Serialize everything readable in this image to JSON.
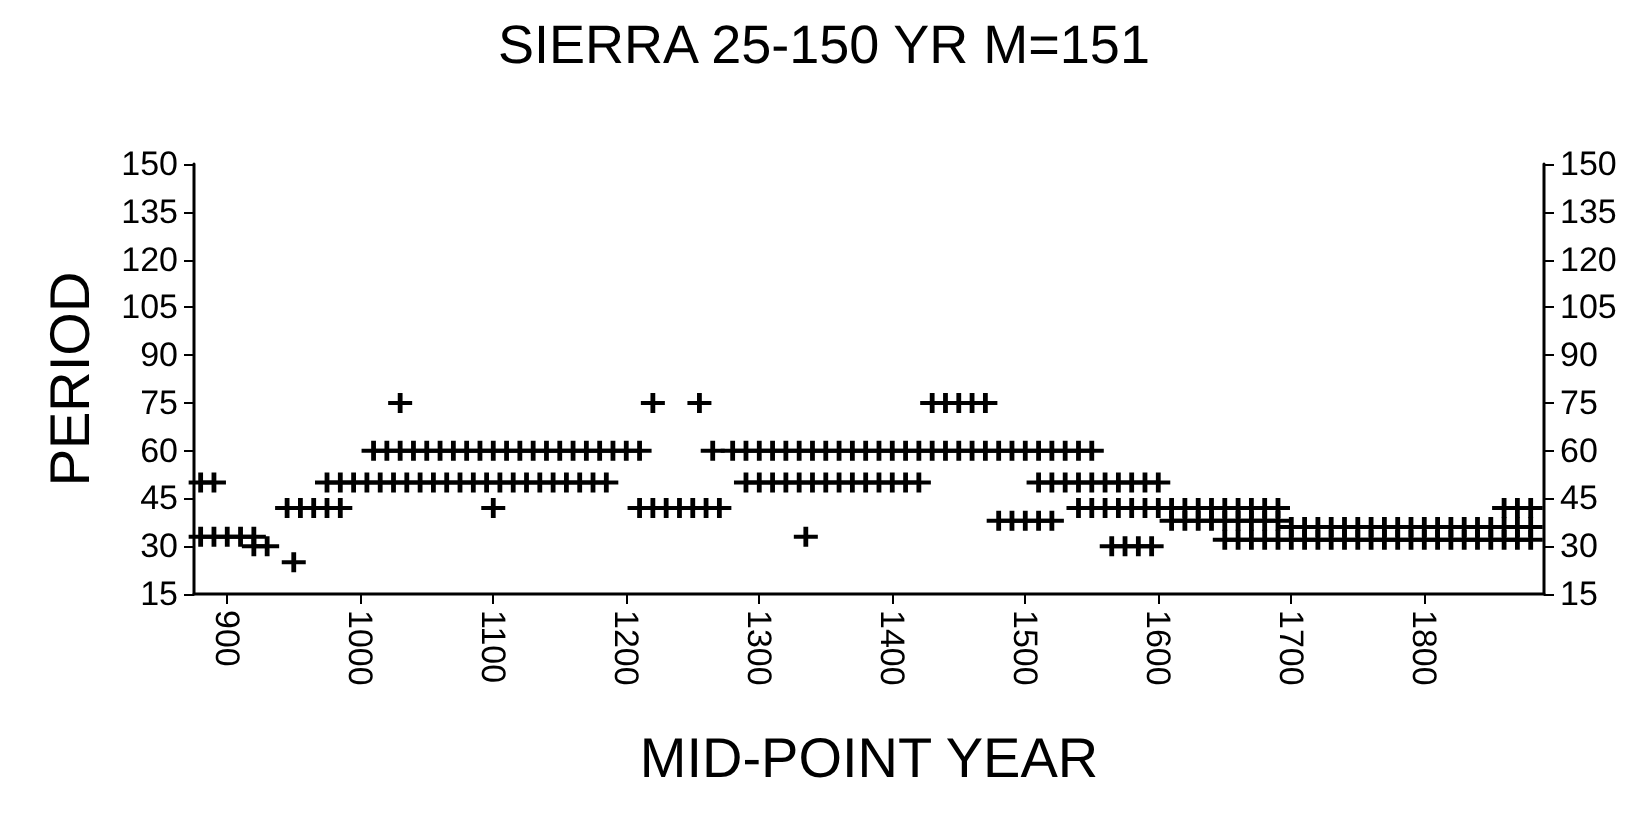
{
  "chart_data": {
    "type": "scatter",
    "title": "SIERRA 25-150 YR M=151",
    "xlabel": "MID-POINT YEAR",
    "ylabel": "PERIOD",
    "xlim": [
      875,
      1890
    ],
    "xticks": [
      900,
      1000,
      1100,
      1200,
      1300,
      1400,
      1500,
      1600,
      1700,
      1800
    ],
    "ylim": [
      15,
      150
    ],
    "yticks": [
      15,
      30,
      45,
      60,
      75,
      90,
      105,
      120,
      135,
      150
    ],
    "y2lim": [
      15,
      150
    ],
    "y2ticks": [
      15,
      30,
      45,
      60,
      75,
      90,
      105,
      120,
      135,
      150
    ],
    "grid": false,
    "marker": "cross",
    "series": [
      {
        "color": "#000000",
        "x": [
          880,
          890,
          880,
          890,
          900,
          910,
          920,
          920,
          930,
          950,
          945,
          955,
          965,
          975,
          985,
          975,
          985,
          995,
          1005,
          1030,
          1010,
          1020,
          1030,
          1040,
          1050,
          1060,
          1070,
          1080,
          1090,
          1100,
          1110,
          1120,
          1130,
          1140,
          1150,
          1160,
          1170,
          1180,
          1190,
          1200,
          1210,
          1015,
          1025,
          1035,
          1045,
          1055,
          1065,
          1075,
          1085,
          1095,
          1105,
          1115,
          1125,
          1135,
          1145,
          1155,
          1165,
          1175,
          1185,
          1100,
          1220,
          1210,
          1220,
          1230,
          1240,
          1250,
          1260,
          1270,
          1255,
          1265,
          1280,
          1290,
          1300,
          1310,
          1320,
          1330,
          1340,
          1350,
          1360,
          1370,
          1380,
          1390,
          1400,
          1410,
          1420,
          1430,
          1440,
          1450,
          1460,
          1470,
          1480,
          1490,
          1500,
          1510,
          1520,
          1530,
          1540,
          1550,
          1290,
          1300,
          1310,
          1320,
          1330,
          1340,
          1350,
          1360,
          1370,
          1380,
          1390,
          1400,
          1410,
          1420,
          1335,
          1430,
          1440,
          1450,
          1460,
          1470,
          1480,
          1490,
          1500,
          1510,
          1520,
          1510,
          1520,
          1530,
          1540,
          1550,
          1560,
          1570,
          1580,
          1590,
          1600,
          1540,
          1550,
          1560,
          1570,
          1580,
          1590,
          1600,
          1610,
          1620,
          1630,
          1640,
          1650,
          1660,
          1670,
          1680,
          1690,
          1565,
          1575,
          1585,
          1595,
          1610,
          1620,
          1630,
          1640,
          1650,
          1660,
          1670,
          1680,
          1690,
          1700,
          1710,
          1720,
          1730,
          1740,
          1750,
          1760,
          1770,
          1780,
          1790,
          1800,
          1810,
          1820,
          1830,
          1840,
          1850,
          1860,
          1870,
          1880,
          1650,
          1660,
          1670,
          1680,
          1690,
          1700,
          1710,
          1720,
          1730,
          1740,
          1750,
          1760,
          1770,
          1780,
          1790,
          1800,
          1810,
          1820,
          1830,
          1840,
          1850,
          1860,
          1870,
          1880,
          1860,
          1870,
          1880
        ],
        "values": [
          50,
          50,
          33,
          33,
          33,
          33,
          33,
          30,
          30,
          25,
          42,
          42,
          42,
          42,
          42,
          50,
          50,
          50,
          50,
          75,
          60,
          60,
          60,
          60,
          60,
          60,
          60,
          60,
          60,
          60,
          60,
          60,
          60,
          60,
          60,
          60,
          60,
          60,
          60,
          60,
          60,
          50,
          50,
          50,
          50,
          50,
          50,
          50,
          50,
          50,
          50,
          50,
          50,
          50,
          50,
          50,
          50,
          50,
          50,
          42,
          75,
          42,
          42,
          42,
          42,
          42,
          42,
          42,
          75,
          60,
          60,
          60,
          60,
          60,
          60,
          60,
          60,
          60,
          60,
          60,
          60,
          60,
          60,
          60,
          60,
          60,
          60,
          60,
          60,
          60,
          60,
          60,
          60,
          60,
          60,
          60,
          60,
          60,
          50,
          50,
          50,
          50,
          50,
          50,
          50,
          50,
          50,
          50,
          50,
          50,
          50,
          50,
          33,
          75,
          75,
          75,
          75,
          75,
          38,
          38,
          38,
          38,
          38,
          50,
          50,
          50,
          50,
          50,
          50,
          50,
          50,
          50,
          50,
          42,
          42,
          42,
          42,
          42,
          42,
          42,
          42,
          42,
          42,
          42,
          42,
          42,
          42,
          42,
          42,
          30,
          30,
          30,
          30,
          38,
          38,
          38,
          38,
          38,
          38,
          38,
          38,
          38,
          36,
          36,
          36,
          36,
          36,
          36,
          36,
          36,
          36,
          36,
          36,
          36,
          36,
          36,
          36,
          36,
          36,
          36,
          36,
          32,
          32,
          32,
          32,
          32,
          32,
          32,
          32,
          32,
          32,
          32,
          32,
          32,
          32,
          32,
          32,
          32,
          32,
          32,
          32,
          32,
          32,
          32,
          32,
          42,
          42,
          42
        ]
      }
    ]
  }
}
